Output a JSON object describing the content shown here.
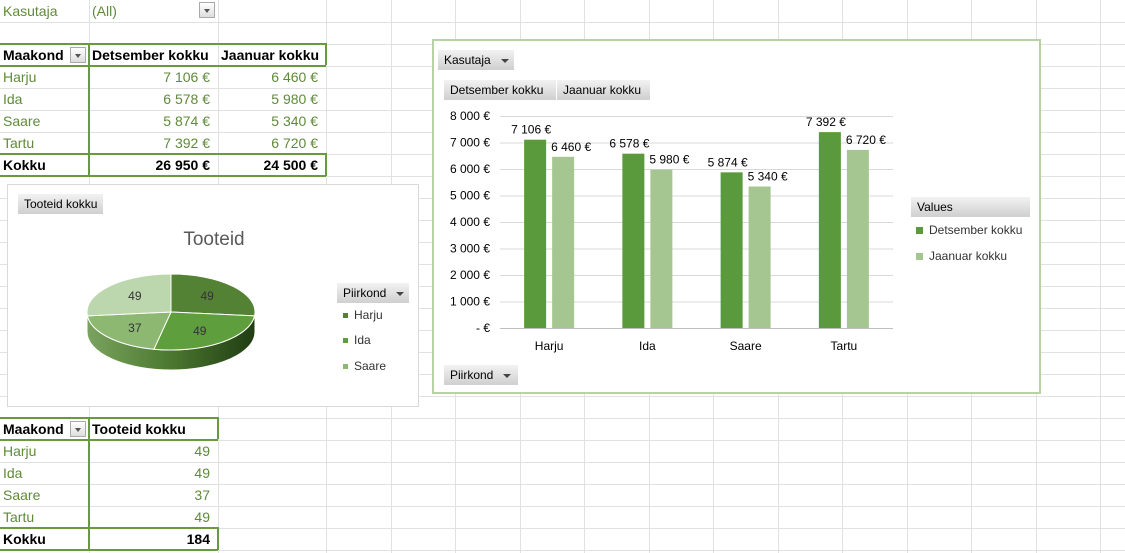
{
  "filter": {
    "label": "Kasutaja",
    "value": "(All)"
  },
  "table1": {
    "headers": [
      "Maakond",
      "Detsember kokku",
      "Jaanuar kokku"
    ],
    "rows": [
      [
        "Harju",
        "7 106 €",
        "6 460 €"
      ],
      [
        "Ida",
        "6 578 €",
        "5 980 €"
      ],
      [
        "Saare",
        "5 874 €",
        "5 340 €"
      ],
      [
        "Tartu",
        "7 392 €",
        "6 720 €"
      ]
    ],
    "total": [
      "Kokku",
      "26 950 €",
      "24 500 €"
    ]
  },
  "table2": {
    "headers": [
      "Maakond",
      "Tooteid kokku"
    ],
    "rows": [
      [
        "Harju",
        "49"
      ],
      [
        "Ida",
        "49"
      ],
      [
        "Saare",
        "37"
      ],
      [
        "Tartu",
        "49"
      ]
    ],
    "total": [
      "Kokku",
      "184"
    ]
  },
  "pie_chart": {
    "field_button": "Tooteid kokku",
    "legend_button": "Piirkond",
    "legend_items": [
      "Harju",
      "Ida",
      "Saare"
    ]
  },
  "bar_chart": {
    "filter_button": "Kasutaja",
    "value_buttons": [
      "Detsember kokku",
      "Jaanuar kokku"
    ],
    "axis_button": "Piirkond",
    "legend_title": "Values"
  },
  "colors": {
    "accent": "#6a9a3f",
    "dark_green": "#5b9a3c",
    "light_green": "#a5c690",
    "text_green": "#5f8a3a"
  },
  "chart_data": [
    {
      "type": "pie",
      "title": "Tooteid",
      "categories": [
        "Harju",
        "Ida",
        "Saare",
        "Tartu"
      ],
      "values": [
        49,
        49,
        37,
        49
      ],
      "colors": [
        "#548235",
        "#5f9e3c",
        "#8cb872",
        "#bcd6ad"
      ],
      "three_d": true
    },
    {
      "type": "bar",
      "categories": [
        "Harju",
        "Ida",
        "Saare",
        "Tartu"
      ],
      "series": [
        {
          "name": "Detsember kokku",
          "values": [
            7106,
            6578,
            5874,
            7392
          ],
          "labels": [
            "7 106 €",
            "6 578 €",
            "5 874 €",
            "7 392 €"
          ],
          "color": "#5b9a3c"
        },
        {
          "name": "Jaanuar kokku",
          "values": [
            6460,
            5980,
            5340,
            6720
          ],
          "labels": [
            "6 460 €",
            "5 980 €",
            "5 340 €",
            "6 720 €"
          ],
          "color": "#a5c690"
        }
      ],
      "yticks": [
        0,
        1000,
        2000,
        3000,
        4000,
        5000,
        6000,
        7000,
        8000
      ],
      "ytick_labels": [
        "-  €",
        "1 000 €",
        "2 000 €",
        "3 000 €",
        "4 000 €",
        "5 000 €",
        "6 000 €",
        "7 000 €",
        "8 000 €"
      ],
      "ylim": [
        0,
        8000
      ],
      "grid": true,
      "legend": "right"
    }
  ]
}
